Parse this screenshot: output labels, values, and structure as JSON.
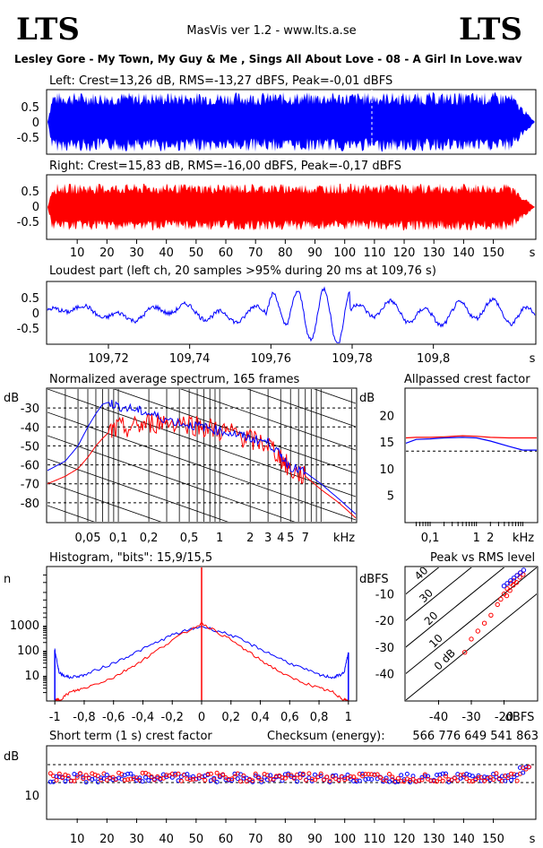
{
  "header": {
    "logo_left": "LTS",
    "logo_right": "LTS",
    "app_title": "MasVis ver 1.2 - www.lts.a.se",
    "track_title": "Lesley Gore - My Town, My Guy & Me , Sings All About Love - 08 - A Girl In Love.wav"
  },
  "colors": {
    "left": "#0000ff",
    "right": "#ff0000"
  },
  "chart_data": [
    {
      "type": "line",
      "id": "left_waveform",
      "title": "Left: Crest=13,26 dB, RMS=-13,27 dBFS, Peak=-0,01 dBFS",
      "ylabel": "",
      "yticks": [
        "0.5",
        "0",
        "-0.5"
      ],
      "ylim": [
        -1,
        1
      ],
      "xlim": [
        0,
        164
      ],
      "series": [
        {
          "color": "#0000ff",
          "envelope_amplitude": 0.95
        }
      ]
    },
    {
      "type": "line",
      "id": "right_waveform",
      "title": "Right: Crest=15,83 dB, RMS=-16,00 dBFS, Peak=-0,17 dBFS",
      "yticks": [
        "0.5",
        "0",
        "-0.5"
      ],
      "ylim": [
        -1,
        1
      ],
      "xlim": [
        0,
        164
      ],
      "xticks": [
        "10",
        "20",
        "30",
        "40",
        "50",
        "60",
        "70",
        "80",
        "90",
        "100",
        "110",
        "120",
        "130",
        "140",
        "150"
      ],
      "xunit": "s",
      "series": [
        {
          "color": "#ff0000",
          "envelope_amplitude": 0.75
        }
      ]
    },
    {
      "type": "line",
      "id": "loudest_part",
      "title": "Loudest part (left  ch, 20 samples >95% during 20 ms at 109,76 s)",
      "yticks": [
        "0.5",
        "0",
        "-0.5"
      ],
      "ylim": [
        -1,
        1
      ],
      "xlim": [
        109.705,
        109.825
      ],
      "xticks": [
        "109,72",
        "109,74",
        "109,76",
        "109,78",
        "109,8"
      ],
      "xunit": "s",
      "series": [
        {
          "color": "#0000ff"
        }
      ]
    },
    {
      "type": "line",
      "id": "avg_spectrum",
      "title": "Normalized average spectrum, 165 frames",
      "ylabel": "dB",
      "yticks": [
        "-30",
        "-40",
        "-50",
        "-60",
        "-70",
        "-80"
      ],
      "ylim": [
        -90,
        -20
      ],
      "xscale": "log",
      "xlim": [
        0.02,
        22
      ],
      "xticks": [
        "0,05",
        "0,1",
        "0,2",
        "0,5",
        "1",
        "2",
        "3",
        "4",
        "5",
        "7"
      ],
      "xunit": "kHz",
      "series": [
        {
          "color": "#0000ff",
          "x": [
            0.02,
            0.03,
            0.04,
            0.05,
            0.06,
            0.07,
            0.08,
            0.1,
            0.15,
            0.2,
            0.3,
            0.5,
            0.7,
            1,
            1.5,
            2,
            3,
            4,
            5,
            7,
            10,
            15,
            22
          ],
          "y": [
            -63,
            -58,
            -50,
            -40,
            -33,
            -28,
            -27,
            -29,
            -31,
            -33,
            -36,
            -39,
            -40,
            -42,
            -44,
            -46,
            -48,
            -55,
            -61,
            -64,
            -70,
            -78,
            -86
          ]
        },
        {
          "color": "#ff0000",
          "x": [
            0.02,
            0.03,
            0.04,
            0.05,
            0.06,
            0.07,
            0.08,
            0.1,
            0.15,
            0.2,
            0.3,
            0.5,
            0.7,
            1,
            1.5,
            2,
            3,
            4,
            5,
            7,
            10,
            15,
            22
          ],
          "y": [
            -70,
            -66,
            -62,
            -56,
            -50,
            -46,
            -43,
            -41,
            -40,
            -38,
            -37,
            -38,
            -40,
            -42,
            -44,
            -47,
            -49,
            -56,
            -63,
            -66,
            -73,
            -80,
            -88
          ]
        }
      ]
    },
    {
      "type": "line",
      "id": "allpassed_crest",
      "title": "Allpassed crest factor",
      "ylabel": "dB",
      "yticks": [
        "20",
        "15",
        "10",
        "5"
      ],
      "ylim": [
        0,
        25
      ],
      "xscale": "log",
      "xlim": [
        0.03,
        20
      ],
      "xticks": [
        "0,1",
        "1",
        "2",
        "kHz"
      ],
      "dashed_reference": 13.3,
      "series": [
        {
          "color": "#0000ff",
          "x": [
            0.03,
            0.05,
            0.1,
            0.2,
            0.5,
            1,
            2,
            5,
            10,
            20
          ],
          "y": [
            14.8,
            15.5,
            15.6,
            15.8,
            15.9,
            15.8,
            15.2,
            14.2,
            13.5,
            13.5
          ]
        },
        {
          "color": "#ff0000",
          "x": [
            0.03,
            0.05,
            0.1,
            0.2,
            0.5,
            1,
            2,
            5,
            10,
            20
          ],
          "y": [
            15.8,
            15.9,
            15.9,
            16.0,
            16.2,
            16.1,
            15.9,
            15.8,
            15.8,
            15.8
          ]
        }
      ]
    },
    {
      "type": "line",
      "id": "histogram",
      "title": "Histogram, \"bits\": 15,9/15,5",
      "ylabel": "n",
      "yticks": [
        "1000",
        "100",
        "10"
      ],
      "yscale": "log",
      "ylim": [
        1,
        200000
      ],
      "xlim": [
        -1.05,
        1.05
      ],
      "xticks": [
        "-1",
        "-0,8",
        "-0,6",
        "-0,4",
        "-0,2",
        "0",
        "0,2",
        "0,4",
        "0,6",
        "0,8",
        "1"
      ],
      "series": [
        {
          "color": "#0000ff",
          "x": [
            -1,
            -0.97,
            -0.9,
            -0.8,
            -0.6,
            -0.4,
            -0.2,
            0,
            0.2,
            0.4,
            0.6,
            0.8,
            0.9,
            0.97,
            1
          ],
          "y": [
            100,
            12,
            8,
            10,
            30,
            110,
            400,
            900,
            400,
            110,
            30,
            10,
            8,
            12,
            80
          ]
        },
        {
          "color": "#ff0000",
          "x": [
            -1,
            -0.97,
            -0.9,
            -0.8,
            -0.6,
            -0.4,
            -0.2,
            0,
            0.2,
            0.4,
            0.6,
            0.8,
            0.9,
            0.97,
            1
          ],
          "y": [
            1,
            1,
            2,
            3,
            8,
            40,
            250,
            1200,
            250,
            40,
            8,
            3,
            2,
            1,
            1
          ]
        }
      ]
    },
    {
      "type": "scatter",
      "id": "peak_vs_rms",
      "title": "Peak vs RMS level",
      "ylabel": "dBFS",
      "yticks": [
        "-10",
        "-20",
        "-30",
        "-40"
      ],
      "ylim": [
        -50,
        0
      ],
      "xlim": [
        -50,
        -10
      ],
      "xticks": [
        "-40",
        "-30",
        "-20",
        "dBFS"
      ],
      "diagonal_labels": [
        "40",
        "30",
        "20",
        "10",
        "0 dB"
      ],
      "series": [
        {
          "color": "#0000ff",
          "x": [
            -14,
            -15,
            -16,
            -17,
            -18,
            -19,
            -20
          ],
          "y": [
            -1,
            -2,
            -3,
            -4,
            -5,
            -6,
            -7
          ]
        },
        {
          "color": "#ff0000",
          "x": [
            -15,
            -16,
            -17,
            -18,
            -19,
            -20,
            -21,
            -22,
            -24,
            -26,
            -28,
            -30,
            -32
          ],
          "y": [
            -2,
            -3,
            -5,
            -6,
            -8,
            -10,
            -12,
            -14,
            -18,
            -21,
            -24,
            -27,
            -32
          ]
        }
      ]
    },
    {
      "type": "scatter",
      "id": "short_term_crest",
      "title": "Short term (1 s) crest factor",
      "ylabel": "dB",
      "yticks": [
        "10"
      ],
      "ylim": [
        0,
        20
      ],
      "xlim": [
        0,
        164
      ],
      "xticks": [
        "10",
        "20",
        "30",
        "40",
        "50",
        "60",
        "70",
        "80",
        "90",
        "100",
        "110",
        "120",
        "130",
        "140",
        "150"
      ],
      "xunit": "s",
      "dashed_references": [
        10,
        15
      ],
      "series": [
        {
          "color": "#0000ff",
          "mean": 11.3
        },
        {
          "color": "#ff0000",
          "mean": 11.5
        }
      ]
    }
  ],
  "checksum": {
    "label": "Checksum (energy):",
    "value": "566 776 649 541 863"
  }
}
